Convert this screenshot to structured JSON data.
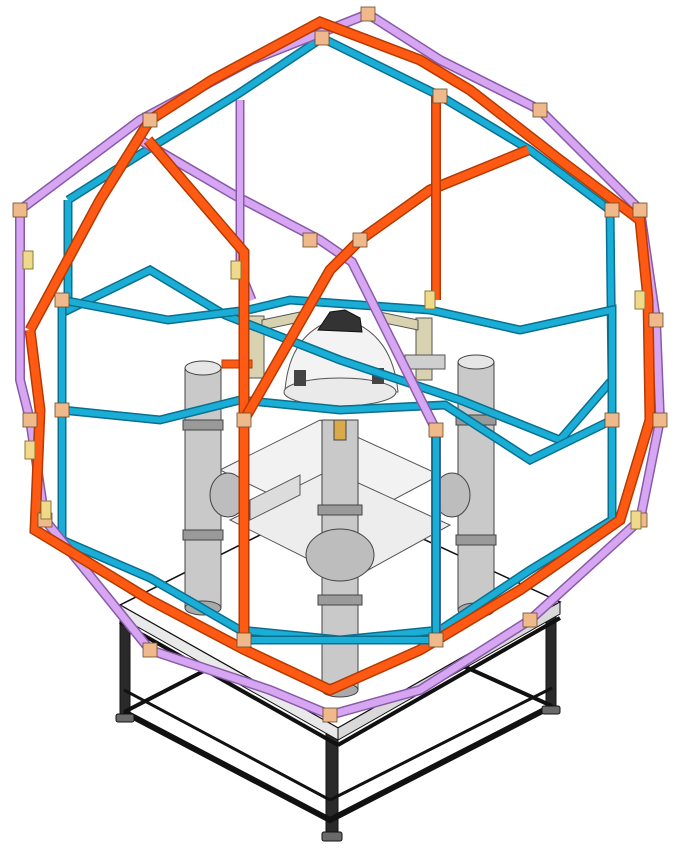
{
  "figure": {
    "kind": "isometric CAD line drawing",
    "labels_printed": false
  },
  "colors": {
    "orange": "#ff5a14",
    "orange_dark": "#b53a00",
    "purple": "#d7a6f2",
    "purple_dark": "#8a5aa8",
    "cyan": "#1aaed6",
    "cyan_dark": "#0a6f8f",
    "bracket": "#f1d98c",
    "plate": "#f0b98c",
    "post": "#c9c9c9",
    "post_dark": "#7a7a7a",
    "bar": "#e8e8e8",
    "strut": "#d8d2b0",
    "base_frame": "#111111",
    "base_top": "#ffffff",
    "background": "#ffffff"
  },
  "components": [
    "orange-frame",
    "purple-frame",
    "cyan-frame",
    "support-posts",
    "center-column",
    "hub-dome",
    "base-table"
  ]
}
